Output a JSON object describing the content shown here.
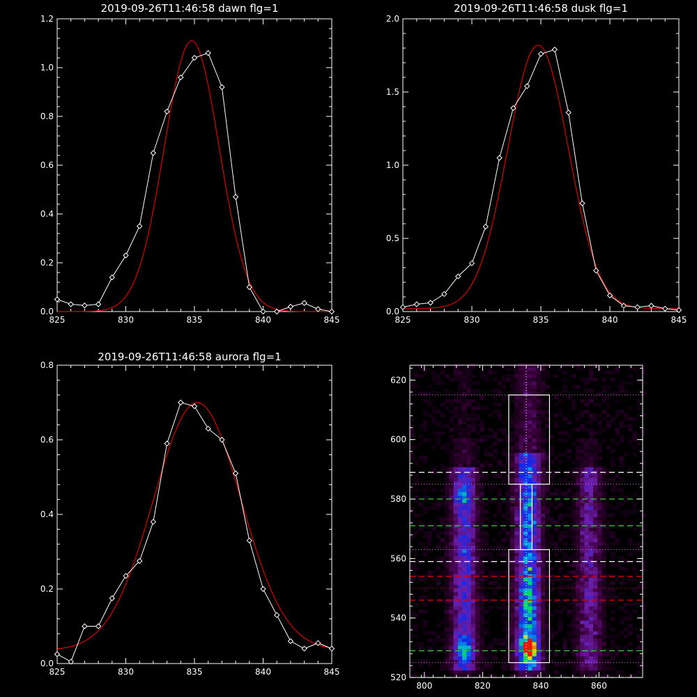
{
  "colors": {
    "background": "#000000",
    "axes": "#ffffff",
    "data_line": "#ffffff",
    "fit_line": "#dd0000",
    "dash_white": "#ffffff",
    "dash_green": "#33cc33",
    "dash_red": "#dd0000",
    "dotted": "#d070d0"
  },
  "chart_data": [
    {
      "type": "line",
      "title": "2019-09-26T11:46:58 dawn flg=1",
      "xlim": [
        825,
        845
      ],
      "ylim": [
        0,
        1.2
      ],
      "xticks": [
        "825",
        "830",
        "835",
        "840",
        "845"
      ],
      "yticks": [
        "0.0",
        "0.2",
        "0.4",
        "0.6",
        "0.8",
        "1.0",
        "1.2"
      ],
      "grid": false,
      "series": [
        {
          "style": "white line with diamond markers",
          "x": [
            825,
            826,
            827,
            828,
            829,
            830,
            831,
            832,
            833,
            834,
            835,
            836,
            837,
            838,
            839,
            840,
            841,
            842,
            843,
            844,
            845
          ],
          "values": [
            0.05,
            0.03,
            0.025,
            0.03,
            0.14,
            0.23,
            0.35,
            0.65,
            0.82,
            0.96,
            1.04,
            1.06,
            0.92,
            0.47,
            0.1,
            0.0,
            0.0,
            0.02,
            0.035,
            0.01,
            0.0
          ]
        },
        {
          "style": "red gaussian fit",
          "fit": {
            "peak": 1.11,
            "center": 834.8,
            "sigma": 2.0,
            "baseline": 0.0
          }
        }
      ]
    },
    {
      "type": "line",
      "title": "2019-09-26T11:46:58 dusk flg=1",
      "xlim": [
        825,
        845
      ],
      "ylim": [
        0,
        2.0
      ],
      "xticks": [
        "825",
        "830",
        "835",
        "840",
        "845"
      ],
      "yticks": [
        "0.0",
        "0.5",
        "1.0",
        "1.5",
        "2.0"
      ],
      "grid": false,
      "series": [
        {
          "style": "white line with diamond markers",
          "x": [
            825,
            826,
            827,
            828,
            829,
            830,
            831,
            832,
            833,
            834,
            835,
            836,
            837,
            838,
            839,
            840,
            841,
            842,
            843,
            844,
            845
          ],
          "values": [
            0.03,
            0.05,
            0.06,
            0.12,
            0.24,
            0.33,
            0.58,
            1.05,
            1.39,
            1.54,
            1.76,
            1.79,
            1.36,
            0.74,
            0.28,
            0.11,
            0.04,
            0.03,
            0.04,
            0.02,
            0.01
          ]
        },
        {
          "style": "red gaussian fit",
          "fit": {
            "peak": 1.8,
            "center": 834.8,
            "sigma": 2.2,
            "baseline": 0.02
          }
        }
      ]
    },
    {
      "type": "line",
      "title": "2019-09-26T11:46:58 aurora flg=1",
      "xlim": [
        825,
        845
      ],
      "ylim": [
        0,
        0.8
      ],
      "xticks": [
        "825",
        "830",
        "835",
        "840",
        "845"
      ],
      "yticks": [
        "0.0",
        "0.2",
        "0.4",
        "0.6",
        "0.8"
      ],
      "grid": false,
      "series": [
        {
          "style": "white line with diamond markers",
          "x": [
            825,
            826,
            827,
            828,
            829,
            830,
            831,
            832,
            833,
            834,
            835,
            836,
            837,
            838,
            839,
            840,
            841,
            842,
            843,
            844,
            845
          ],
          "values": [
            0.025,
            0.005,
            0.1,
            0.1,
            0.175,
            0.235,
            0.275,
            0.38,
            0.59,
            0.7,
            0.69,
            0.63,
            0.6,
            0.51,
            0.33,
            0.2,
            0.13,
            0.06,
            0.04,
            0.055,
            0.04
          ]
        },
        {
          "style": "red gaussian fit",
          "fit": {
            "peak": 0.665,
            "center": 835.2,
            "sigma": 3.2,
            "baseline": 0.035
          }
        }
      ]
    },
    {
      "type": "heatmap",
      "title": "",
      "xlim": [
        795,
        875
      ],
      "ylim": [
        520,
        625
      ],
      "xticks": [
        "800",
        "820",
        "840",
        "860"
      ],
      "yticks": [
        "520",
        "540",
        "560",
        "580",
        "600",
        "620"
      ],
      "colormap": "black-purple-blue-cyan-green-yellow-red",
      "emission_columns_x": [
        813,
        835,
        856
      ],
      "bright_spots": [
        {
          "x": 835,
          "y": 529,
          "level": "red/yellow"
        },
        {
          "x": 813,
          "y": 529,
          "level": "cyan"
        },
        {
          "x": 812,
          "y": 580,
          "level": "cyan"
        }
      ],
      "vertical_dotted_line_x": 835,
      "aperture_boxes": [
        {
          "x": [
            829,
            843
          ],
          "y": [
            585,
            615
          ]
        },
        {
          "x": [
            829,
            843
          ],
          "y": [
            525,
            563
          ]
        },
        {
          "x": [
            833,
            837
          ],
          "y": [
            563,
            585
          ]
        }
      ],
      "horizontal_lines": [
        {
          "y": 615,
          "style": "dotted",
          "color": "magenta"
        },
        {
          "y": 589,
          "style": "dashed",
          "color": "white"
        },
        {
          "y": 585,
          "style": "dotted",
          "color": "magenta"
        },
        {
          "y": 580,
          "style": "dashed",
          "color": "green"
        },
        {
          "y": 571,
          "style": "dashed",
          "color": "green"
        },
        {
          "y": 563,
          "style": "dotted",
          "color": "magenta"
        },
        {
          "y": 559,
          "style": "dashed",
          "color": "white"
        },
        {
          "y": 554,
          "style": "dashed",
          "color": "red"
        },
        {
          "y": 550,
          "style": "dotted",
          "color": "red"
        },
        {
          "y": 546,
          "style": "dashed",
          "color": "red"
        },
        {
          "y": 529,
          "style": "dashed",
          "color": "green"
        },
        {
          "y": 525,
          "style": "dotted",
          "color": "magenta"
        },
        {
          "y": 520,
          "style": "dashed",
          "color": "green"
        }
      ]
    }
  ]
}
